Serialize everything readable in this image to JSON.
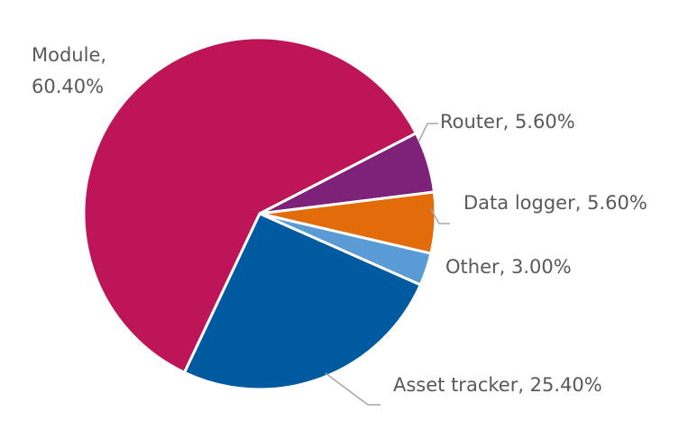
{
  "chart_data": {
    "type": "pie",
    "title": "",
    "slices": [
      {
        "name": "Module",
        "value": 60.4,
        "label_line1": "Module,",
        "label_line2": "60.40%",
        "color": "#BE1558"
      },
      {
        "name": "Router",
        "value": 5.6,
        "label": "Router, 5.60%",
        "color": "#7E2179"
      },
      {
        "name": "Data logger",
        "value": 5.6,
        "label": "Data logger, 5.60%",
        "color": "#E26B0A"
      },
      {
        "name": "Other",
        "value": 3.0,
        "label": "Other, 3.00%",
        "color": "#5B9BD5"
      },
      {
        "name": "Asset tracker",
        "value": 25.4,
        "label": "Asset tracker, 25.40%",
        "color": "#005AA0"
      }
    ],
    "leader_line_color": "#A6A6A6",
    "slice_border_color": "#FFFFFF"
  }
}
